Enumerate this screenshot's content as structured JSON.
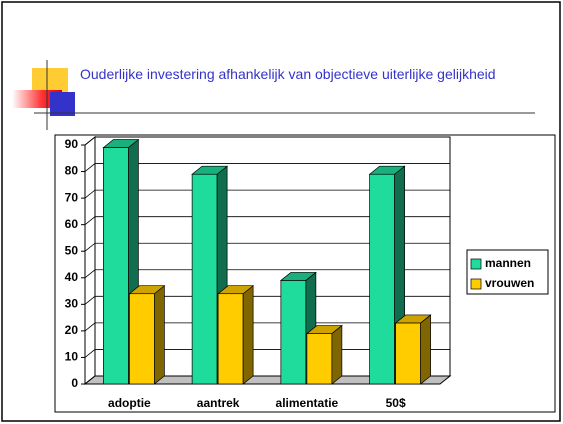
{
  "chart_data": {
    "type": "bar3d",
    "title": "Ouderlijke investering afhankelijk van objectieve uiterlijke gelijkheid",
    "categories": [
      "adoptie",
      "aantrek",
      "alimentatie",
      "50$"
    ],
    "series": [
      {
        "name": "mannen",
        "color": "#1fdc9c",
        "values": [
          89,
          79,
          39,
          79
        ]
      },
      {
        "name": "vrouwen",
        "color": "#ffcc00",
        "values": [
          34,
          34,
          19,
          23
        ]
      }
    ],
    "ylim": [
      0,
      90
    ],
    "yticks": [
      0,
      10,
      20,
      30,
      40,
      50,
      60,
      70,
      80,
      90
    ],
    "grid": true,
    "legend": "right"
  }
}
